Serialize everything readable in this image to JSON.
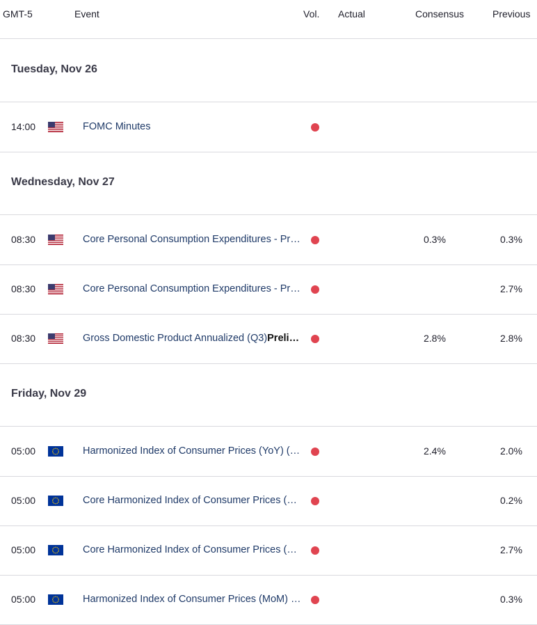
{
  "header": {
    "gmt": "GMT-5",
    "event": "Event",
    "vol": "Vol.",
    "actual": "Actual",
    "consensus": "Consensus",
    "previous": "Previous"
  },
  "days": [
    {
      "label": "Tuesday, Nov 26",
      "rows": [
        {
          "time": "14:00",
          "flag": "us-flag-icon",
          "event": "FOMC Minutes",
          "event_bold": "",
          "volatility": "high",
          "actual": "",
          "consensus": "",
          "previous": ""
        }
      ]
    },
    {
      "label": "Wednesday, Nov 27",
      "rows": [
        {
          "time": "08:30",
          "flag": "us-flag-icon",
          "event": "Core Personal Consumption Expenditures - Pr…",
          "event_bold": "",
          "volatility": "high",
          "actual": "",
          "consensus": "0.3%",
          "previous": "0.3%"
        },
        {
          "time": "08:30",
          "flag": "us-flag-icon",
          "event": "Core Personal Consumption Expenditures - Pr…",
          "event_bold": "",
          "volatility": "high",
          "actual": "",
          "consensus": "",
          "previous": "2.7%"
        },
        {
          "time": "08:30",
          "flag": "us-flag-icon",
          "event": "Gross Domestic Product Annualized (Q3)",
          "event_bold": "Preli…",
          "volatility": "high",
          "actual": "",
          "consensus": "2.8%",
          "previous": "2.8%"
        }
      ]
    },
    {
      "label": "Friday, Nov 29",
      "rows": [
        {
          "time": "05:00",
          "flag": "eu-flag-icon",
          "event": "Harmonized Index of Consumer Prices (YoY) (…",
          "event_bold": "",
          "volatility": "high",
          "actual": "",
          "consensus": "2.4%",
          "previous": "2.0%"
        },
        {
          "time": "05:00",
          "flag": "eu-flag-icon",
          "event": "Core Harmonized Index of Consumer Prices (…",
          "event_bold": "",
          "volatility": "high",
          "actual": "",
          "consensus": "",
          "previous": "0.2%"
        },
        {
          "time": "05:00",
          "flag": "eu-flag-icon",
          "event": "Core Harmonized Index of Consumer Prices (…",
          "event_bold": "",
          "volatility": "high",
          "actual": "",
          "consensus": "",
          "previous": "2.7%"
        },
        {
          "time": "05:00",
          "flag": "eu-flag-icon",
          "event": "Harmonized Index of Consumer Prices (MoM) …",
          "event_bold": "",
          "volatility": "high",
          "actual": "",
          "consensus": "",
          "previous": "0.3%"
        }
      ]
    }
  ],
  "colors": {
    "volatility_high": "#e04450",
    "event_link": "#1f3a68",
    "divider": "#d9d9de"
  }
}
